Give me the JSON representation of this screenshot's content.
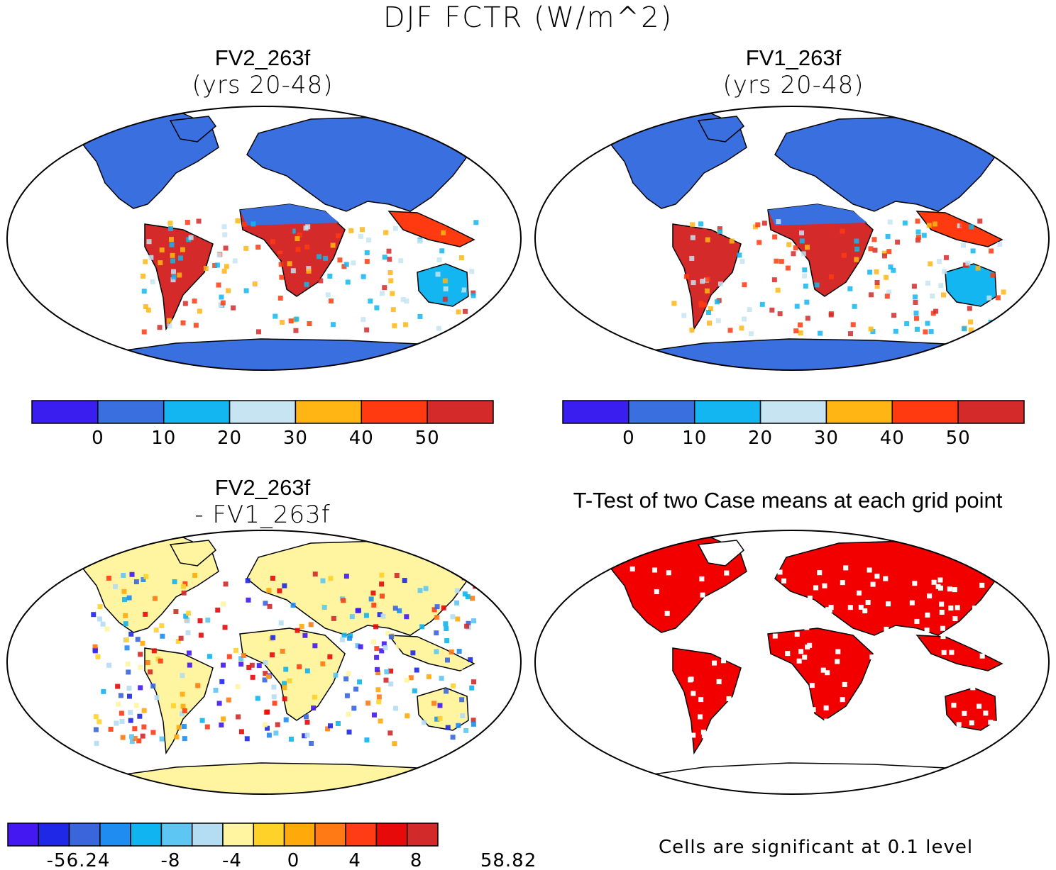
{
  "title": "DJF FCTR (W/m^2)",
  "panels": [
    {
      "id": "p1",
      "title": "FV2_263f",
      "subtitle": "(yrs 20-48)"
    },
    {
      "id": "p2",
      "title": "FV1_263f",
      "subtitle": "(yrs 20-48)"
    },
    {
      "id": "p3",
      "title": "FV2_263f",
      "subtitle": "- FV1_263f"
    },
    {
      "id": "p4",
      "title": "T-Test of two Case means at each grid point",
      "subtitle": ""
    }
  ],
  "colorbar_main": {
    "colors": [
      "#3a1ef0",
      "#3a6fe0",
      "#13b6f0",
      "#c6e4f2",
      "#ffb614",
      "#ff3a10",
      "#d42a2a"
    ],
    "labels": [
      "0",
      "10",
      "20",
      "30",
      "40",
      "50"
    ]
  },
  "colorbar_diff": {
    "colors": [
      "#4418f0",
      "#1e28e6",
      "#3a66dc",
      "#1e8cf0",
      "#0fb4f0",
      "#5ec6f2",
      "#b4dcf2",
      "#fff5a0",
      "#ffd22a",
      "#ffaa0a",
      "#ff7a14",
      "#ff3c14",
      "#e60a0a",
      "#d22a2a"
    ],
    "labels": [
      "-56.24",
      "-8",
      "-4",
      "0",
      "4",
      "8",
      "58.82"
    ]
  },
  "ttest_note": "Cells are significant at 0.1 level",
  "colors": {
    "land_p1": "#3a6fe0",
    "land_p3": "#fff5a0",
    "signif": "#f20000",
    "warm": "#d42a2a",
    "warm2": "#ff3a10"
  }
}
